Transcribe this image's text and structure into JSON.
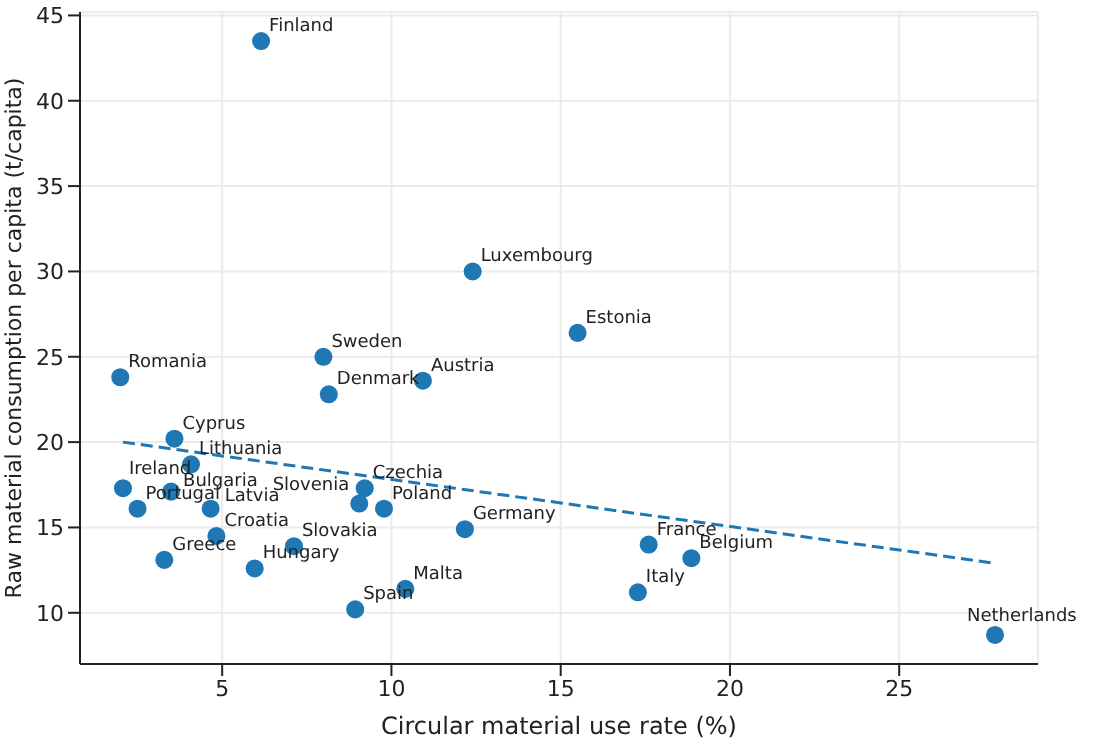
{
  "chart_data": {
    "type": "scatter",
    "xlabel": "Circular material use rate (%)",
    "ylabel": "Raw material consumption per capita (t/capita)",
    "xlim": [
      0.8,
      29.1
    ],
    "ylim": [
      7,
      45.2
    ],
    "xticks": [
      5,
      10,
      15,
      20,
      25
    ],
    "yticks": [
      10,
      15,
      20,
      25,
      30,
      35,
      40,
      45
    ],
    "grid": true,
    "series": [
      {
        "type": "scatter",
        "color": "#1f77b4",
        "marker": "circle",
        "x": [
          6.15,
          12.4,
          15.5,
          7.99,
          1.99,
          10.93,
          8.15,
          3.59,
          4.08,
          2.07,
          3.49,
          2.5,
          4.66,
          9.21,
          9.05,
          9.78,
          12.17,
          4.83,
          7.12,
          3.29,
          5.96,
          10.41,
          8.93,
          17.6,
          18.86,
          17.28,
          27.83
        ],
        "values": [
          43.5,
          30.0,
          26.4,
          25.0,
          23.8,
          23.6,
          22.8,
          20.2,
          18.7,
          17.3,
          17.1,
          16.1,
          16.1,
          17.3,
          16.4,
          16.1,
          14.9,
          14.5,
          13.9,
          13.1,
          12.6,
          11.4,
          10.2,
          14.0,
          13.2,
          11.2,
          8.7
        ]
      },
      {
        "type": "line",
        "color": "#1f77b4",
        "line_style": "dashed",
        "marker": "none",
        "x": [
          2.07,
          27.83
        ],
        "values": [
          20.0,
          12.9
        ]
      }
    ],
    "annotations": [
      {
        "text": "Finland",
        "x": 6.15,
        "y": 43.5
      },
      {
        "text": "Luxembourg",
        "x": 12.4,
        "y": 30.0
      },
      {
        "text": "Estonia",
        "x": 15.5,
        "y": 26.4
      },
      {
        "text": "Sweden",
        "x": 7.99,
        "y": 25.0
      },
      {
        "text": "Romania",
        "x": 1.99,
        "y": 23.8
      },
      {
        "text": "Austria",
        "x": 10.93,
        "y": 23.6
      },
      {
        "text": "Denmark",
        "x": 8.15,
        "y": 22.8
      },
      {
        "text": "Cyprus",
        "x": 3.59,
        "y": 20.2
      },
      {
        "text": "Lithuania",
        "x": 4.08,
        "y": 18.7
      },
      {
        "text": "Ireland",
        "x": 2.07,
        "y": 17.3
      },
      {
        "text": "Bulgaria",
        "x": 3.49,
        "y": 17.1
      },
      {
        "text": "Portugal",
        "x": 2.5,
        "y": 16.1
      },
      {
        "text": "Latvia",
        "x": 4.66,
        "y": 16.1
      },
      {
        "text": "Czechia",
        "x": 9.21,
        "y": 17.3
      },
      {
        "text": "Slovenia",
        "x": 9.05,
        "y": 16.4
      },
      {
        "text": "Poland",
        "x": 9.78,
        "y": 16.1
      },
      {
        "text": "Germany",
        "x": 12.17,
        "y": 14.9
      },
      {
        "text": "Croatia",
        "x": 4.83,
        "y": 14.5
      },
      {
        "text": "Slovakia",
        "x": 7.12,
        "y": 13.9
      },
      {
        "text": "Greece",
        "x": 3.29,
        "y": 13.1
      },
      {
        "text": "Hungary",
        "x": 5.96,
        "y": 12.6
      },
      {
        "text": "Malta",
        "x": 10.41,
        "y": 11.4
      },
      {
        "text": "Spain",
        "x": 8.93,
        "y": 10.2
      },
      {
        "text": "France",
        "x": 17.6,
        "y": 14.0
      },
      {
        "text": "Belgium",
        "x": 18.86,
        "y": 13.2
      },
      {
        "text": "Italy",
        "x": 17.28,
        "y": 11.2
      },
      {
        "text": "Netherlands",
        "x": 27.83,
        "y": 8.7
      }
    ]
  }
}
